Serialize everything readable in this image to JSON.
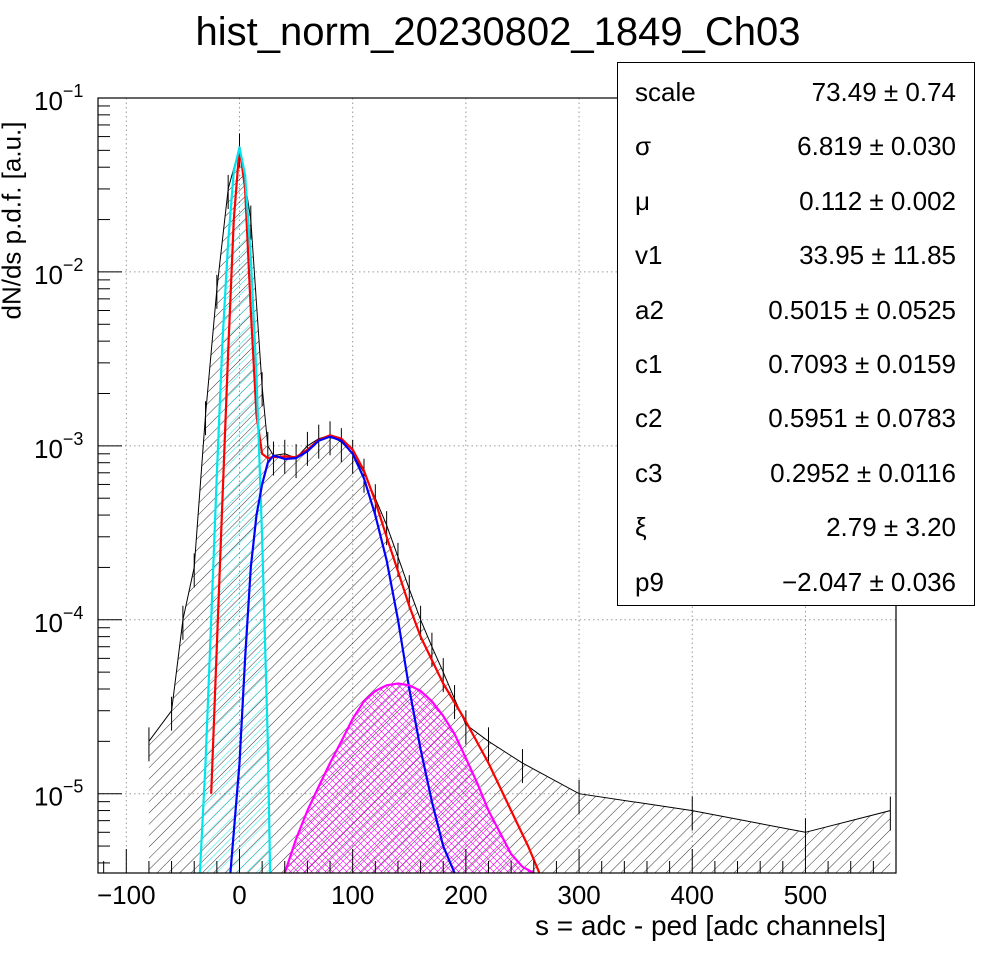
{
  "chart_data": {
    "type": "histogram",
    "title": "hist_norm_20230802_1849_Ch03",
    "xlabel": "s = adc - ped [adc channels]",
    "ylabel": "dN/ds p.d.f. [a.u.]",
    "xlim": [
      -125,
      580
    ],
    "ylim": [
      3.5e-06,
      0.1
    ],
    "ylog": true,
    "grid": true,
    "x_ticks": [
      -100,
      0,
      100,
      200,
      300,
      400,
      500
    ],
    "x_tick_labels": [
      "−100",
      "0",
      "100",
      "200",
      "300",
      "400",
      "500"
    ],
    "y_ticks": [
      1e-05,
      0.0001,
      0.001,
      0.01,
      0.1
    ],
    "y_tick_labels": [
      {
        "base": "10",
        "exp": "−5"
      },
      {
        "base": "10",
        "exp": "−4"
      },
      {
        "base": "10",
        "exp": "−3"
      },
      {
        "base": "10",
        "exp": "−2"
      },
      {
        "base": "10",
        "exp": "−1"
      }
    ],
    "series": [
      {
        "color": "#000000",
        "kind": "histogram",
        "x": [
          -80,
          -60,
          -50,
          -40,
          -30,
          -20,
          -10,
          0,
          10,
          20,
          25,
          30,
          40,
          50,
          60,
          70,
          80,
          90,
          100,
          110,
          120,
          130,
          140,
          150,
          160,
          170,
          180,
          190,
          200,
          220,
          250,
          300,
          400,
          500,
          575
        ],
        "y": [
          2e-05,
          3e-05,
          0.0001,
          0.0002,
          0.0015,
          0.008,
          0.03,
          0.052,
          0.02,
          0.0022,
          0.001,
          0.00088,
          0.0009,
          0.00085,
          0.001,
          0.0011,
          0.00115,
          0.00105,
          0.0009,
          0.0007,
          0.0005,
          0.00035,
          0.00023,
          0.00015,
          0.0001,
          7e-05,
          5e-05,
          3.5e-05,
          2.5e-05,
          2e-05,
          1.5e-05,
          1e-05,
          8e-06,
          6e-06,
          8e-06
        ]
      },
      {
        "color": "#ff0000",
        "kind": "total-fit",
        "x": [
          -25,
          -15,
          -10,
          -5,
          0,
          5,
          10,
          15,
          20,
          25,
          30,
          40,
          50,
          60,
          70,
          80,
          90,
          100,
          110,
          120,
          130,
          140,
          150,
          160,
          180,
          200,
          220,
          240,
          255,
          265
        ],
        "y": [
          1e-05,
          0.0005,
          0.0035,
          0.02,
          0.052,
          0.03,
          0.006,
          0.0015,
          0.0009,
          0.00085,
          0.00086,
          0.00087,
          0.00086,
          0.00095,
          0.00108,
          0.00115,
          0.0011,
          0.00095,
          0.00072,
          0.00048,
          0.0003,
          0.00019,
          0.00012,
          8e-05,
          4.3e-05,
          2.6e-05,
          1.5e-05,
          8e-06,
          5e-06,
          3.5e-06
        ]
      },
      {
        "color": "#00e5ee",
        "kind": "pedestal",
        "x": [
          -35,
          -30,
          -25,
          -20,
          -15,
          -10,
          -5,
          0,
          5,
          10,
          15,
          20,
          25,
          27
        ],
        "y": [
          3.5e-06,
          1.5e-05,
          0.0001,
          0.0007,
          0.004,
          0.015,
          0.038,
          0.052,
          0.036,
          0.012,
          0.0025,
          0.0003,
          2e-05,
          3.5e-06
        ]
      },
      {
        "color": "#0000ff",
        "kind": "signal",
        "x": [
          -8,
          0,
          5,
          10,
          15,
          20,
          25,
          30,
          35,
          40,
          50,
          60,
          70,
          80,
          90,
          100,
          110,
          120,
          130,
          140,
          150,
          160,
          170,
          180,
          190
        ],
        "y": [
          3.5e-06,
          1.5e-05,
          6e-05,
          0.0002,
          0.0004,
          0.0006,
          0.0008,
          0.00088,
          0.00086,
          0.00084,
          0.00085,
          0.00093,
          0.00107,
          0.00113,
          0.00107,
          0.0009,
          0.00065,
          0.0004,
          0.00022,
          0.0001,
          4e-05,
          1.8e-05,
          9e-06,
          5e-06,
          3.5e-06
        ]
      },
      {
        "color": "#ff00ff",
        "kind": "background",
        "x": [
          40,
          50,
          60,
          70,
          80,
          90,
          100,
          110,
          120,
          130,
          140,
          150,
          160,
          170,
          180,
          190,
          200,
          210,
          220,
          230,
          240,
          250,
          260
        ],
        "y": [
          3.5e-06,
          5.5e-06,
          8e-06,
          1.1e-05,
          1.5e-05,
          2e-05,
          2.7e-05,
          3.4e-05,
          3.9e-05,
          4.2e-05,
          4.3e-05,
          4.2e-05,
          3.9e-05,
          3.4e-05,
          2.8e-05,
          2.2e-05,
          1.6e-05,
          1.15e-05,
          8e-06,
          6e-06,
          4.5e-06,
          3.8e-06,
          3.5e-06
        ]
      }
    ],
    "stats_box": {
      "legend_position": "top-right",
      "rows": [
        {
          "name": "scale",
          "value": "73.49",
          "pm": "±",
          "error": "0.74"
        },
        {
          "name": "σ",
          "value": "6.819",
          "pm": "±",
          "error": "0.030"
        },
        {
          "name": "μ",
          "value": "0.112",
          "pm": "±",
          "error": "0.002"
        },
        {
          "name": "v1",
          "value": "33.95",
          "pm": "±",
          "error": "11.85"
        },
        {
          "name": "a2",
          "value": "0.5015",
          "pm": "±",
          "error": "0.0525"
        },
        {
          "name": "c1",
          "value": "0.7093",
          "pm": "±",
          "error": "0.0159"
        },
        {
          "name": "c2",
          "value": "0.5951",
          "pm": "±",
          "error": "0.0783"
        },
        {
          "name": "c3",
          "value": "0.2952",
          "pm": "±",
          "error": "0.0116"
        },
        {
          "name": "ξ",
          "value": "2.79",
          "pm": "±",
          "error": "3.20"
        },
        {
          "name": "p9",
          "value": "−2.047",
          "pm": "±",
          "error": "0.036"
        }
      ]
    }
  }
}
